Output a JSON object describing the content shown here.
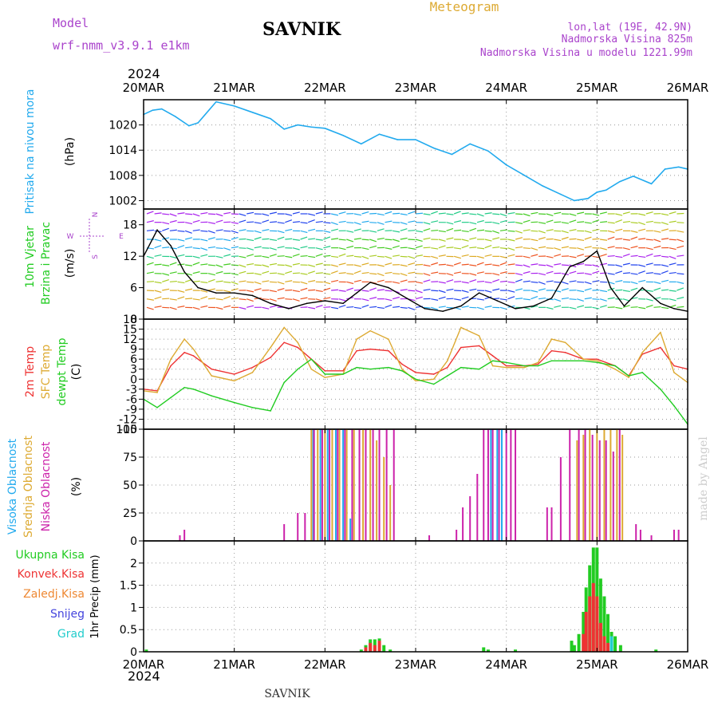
{
  "header": {
    "model_label": "Model",
    "model_name": "wrf-nmm_v3.9.1  e1km",
    "title": "SAVNIK",
    "subtitle": "Meteogram",
    "coords": "lon,lat (19E, 42.9N)",
    "elevation": "Nadmorska Visina 825m",
    "model_elevation": "Nadmorska Visina u modelu 1221.99m",
    "year_top": "2024",
    "year_bottom": "2024",
    "footer": "SAVNIK",
    "watermark": "made by Angel"
  },
  "colors": {
    "pressure": "#22aaee",
    "temp2m": "#ee3333",
    "sfc": "#ddaa33",
    "dew": "#22cc22",
    "high_cloud": "#22aaee",
    "mid_cloud": "#ddaa33",
    "low_cloud": "#cc22aa",
    "total_precip": "#22cc22",
    "conv_precip": "#ee3333",
    "frz_precip": "#ee8833",
    "snow": "#4444dd",
    "hail": "#22cccc",
    "purple_text": "#aa44cc"
  },
  "x_axis": {
    "dates": [
      "20MAR",
      "21MAR",
      "22MAR",
      "23MAR",
      "24MAR",
      "25MAR",
      "26MAR"
    ]
  },
  "panel_labels": {
    "pressure": [
      "Pritisak na nivou mora",
      "(hPa)"
    ],
    "wind": [
      "10m Vjetar",
      "Brzina i Pravac",
      "(m/s)"
    ],
    "wind_rose": {
      "n": "N",
      "e": "E",
      "w": "W",
      "s": "S"
    },
    "temp": [
      "2m Temp",
      "SFC Temp",
      "dewpt Temp",
      "(C)"
    ],
    "cloud": [
      "Visoka Oblacnost",
      "Srednja Oblacnost",
      "Niska Oblacnost",
      "(%)"
    ],
    "precip": [
      "Ukupna Kisa",
      "Konvek.Kisa",
      "Zaledj.Kisa",
      "Snijeg",
      "Grad",
      "1hr Precip (mm)"
    ]
  },
  "chart_data": [
    {
      "type": "line",
      "ylabel": "Pritisak na nivou mora (hPa)",
      "ylim": [
        1000,
        1026
      ],
      "yticks": [
        "1002",
        "1008",
        "1014",
        "1020"
      ],
      "x": [
        0,
        0.1,
        0.2,
        0.35,
        0.5,
        0.6,
        0.8,
        1.0,
        1.2,
        1.4,
        1.55,
        1.7,
        1.85,
        2.0,
        2.2,
        2.4,
        2.6,
        2.8,
        3.0,
        3.2,
        3.4,
        3.6,
        3.8,
        4.0,
        4.2,
        4.4,
        4.6,
        4.75,
        4.9,
        5.0,
        5.1,
        5.25,
        5.4,
        5.6,
        5.75,
        5.9,
        6.0
      ],
      "values": [
        1022.5,
        1023.5,
        1023.8,
        1022.0,
        1019.8,
        1020.5,
        1025.5,
        1024.5,
        1023.0,
        1021.5,
        1019.0,
        1020.0,
        1019.5,
        1019.2,
        1017.5,
        1015.5,
        1017.8,
        1016.5,
        1016.5,
        1014.5,
        1013.0,
        1015.5,
        1013.8,
        1010.5,
        1008.0,
        1005.5,
        1003.5,
        1002.0,
        1002.5,
        1004.0,
        1004.5,
        1006.5,
        1007.8,
        1006.0,
        1009.5,
        1010.0,
        1009.5
      ],
      "series": [
        {
          "name": "Pritisak na nivou mora",
          "color": "#22aaee"
        }
      ]
    },
    {
      "type": "line",
      "ylabel": "10m Vjetar Brzina i Pravac (m/s)",
      "ylim": [
        0,
        21
      ],
      "yticks": [
        "0",
        "6",
        "12",
        "18"
      ],
      "x": [
        0,
        0.15,
        0.3,
        0.45,
        0.6,
        0.8,
        1.0,
        1.2,
        1.4,
        1.6,
        1.8,
        2.0,
        2.2,
        2.35,
        2.5,
        2.7,
        2.9,
        3.1,
        3.3,
        3.5,
        3.7,
        3.9,
        4.1,
        4.3,
        4.5,
        4.7,
        4.85,
        5.0,
        5.15,
        5.3,
        5.5,
        5.7,
        5.85,
        6.0
      ],
      "values": [
        12,
        17,
        14,
        9,
        6,
        5,
        5,
        4.5,
        3,
        2,
        3,
        3.5,
        3,
        5,
        7,
        6,
        4,
        2,
        1.5,
        2.5,
        5,
        3.5,
        2,
        2.5,
        4,
        10,
        11,
        13,
        6,
        2.5,
        6,
        3,
        2,
        1.5
      ],
      "series": [
        {
          "name": "10m Vjetar Brzina",
          "color": "#000000"
        }
      ]
    },
    {
      "type": "line",
      "ylabel": "(C)",
      "ylim": [
        -15,
        18
      ],
      "yticks": [
        "-15",
        "-12",
        "-9",
        "-6",
        "-3",
        "0",
        "3",
        "6",
        "9",
        "12",
        "15",
        "18"
      ],
      "x": [
        0,
        0.15,
        0.3,
        0.45,
        0.55,
        0.75,
        1.0,
        1.2,
        1.4,
        1.55,
        1.7,
        1.85,
        2.0,
        2.2,
        2.35,
        2.5,
        2.7,
        2.85,
        3.0,
        3.2,
        3.35,
        3.5,
        3.7,
        3.85,
        4.0,
        4.2,
        4.35,
        4.5,
        4.65,
        4.85,
        5.0,
        5.2,
        5.35,
        5.5,
        5.7,
        5.85,
        6.0
      ],
      "series": [
        {
          "name": "2m Temp",
          "color": "#ee3333",
          "values": [
            -3,
            -3.5,
            4,
            8,
            7,
            3,
            1.5,
            3.5,
            6.5,
            11,
            9.5,
            6,
            2.5,
            2.5,
            8.5,
            9,
            8.5,
            4.5,
            2,
            1.5,
            3.5,
            9.5,
            10,
            7,
            4,
            4,
            4.5,
            8.5,
            8,
            6,
            6,
            4,
            1,
            7.5,
            9.5,
            4,
            3
          ]
        },
        {
          "name": "SFC Temp",
          "color": "#ddaa33",
          "values": [
            -3.5,
            -4,
            6,
            12,
            9,
            1,
            -0.5,
            2,
            9.5,
            15.5,
            11,
            3,
            0.5,
            1.5,
            12,
            14.5,
            12,
            3,
            -0.5,
            0,
            5.5,
            15.5,
            13,
            4,
            3.5,
            3.5,
            5,
            12,
            11,
            6,
            5.5,
            3,
            0.5,
            8,
            14,
            2,
            -1
          ]
        },
        {
          "name": "dewpt Temp",
          "color": "#22cc22",
          "values": [
            -6,
            -8.5,
            -5.5,
            -2.5,
            -3,
            -5,
            -7,
            -8.5,
            -9.5,
            -1,
            3,
            6,
            1.5,
            1.5,
            3.5,
            3,
            3.5,
            2.5,
            0,
            -1.5,
            1,
            3.5,
            3,
            5.5,
            5,
            4,
            4,
            5.5,
            5.5,
            5.5,
            5,
            4,
            1,
            2,
            -3,
            -8,
            -13.5
          ]
        }
      ]
    },
    {
      "type": "bar",
      "ylabel": "(%)",
      "ylim": [
        0,
        100
      ],
      "yticks": [
        "0",
        "25",
        "50",
        "75",
        "100"
      ],
      "series": [
        {
          "name": "Visoka Oblacnost",
          "color": "#22aaee",
          "x": [
            1.87,
            1.95,
            2.03,
            2.12,
            2.2,
            2.28,
            3.83,
            3.9,
            3.95
          ],
          "values": [
            100,
            100,
            100,
            100,
            100,
            20,
            100,
            100,
            100
          ]
        },
        {
          "name": "Srednja Oblacnost",
          "color": "#ddaa33",
          "x": [
            1.85,
            1.92,
            2.0,
            2.08,
            2.16,
            2.24,
            2.32,
            2.42,
            2.5,
            2.57,
            2.65,
            2.72,
            4.78,
            4.85,
            4.92,
            5.0,
            5.08,
            5.15,
            5.22,
            5.28
          ],
          "values": [
            100,
            100,
            100,
            100,
            100,
            100,
            100,
            100,
            100,
            90,
            75,
            50,
            90,
            95,
            100,
            100,
            100,
            100,
            100,
            95
          ]
        },
        {
          "name": "Niska Oblacnost",
          "color": "#cc22aa",
          "x": [
            0.4,
            0.45,
            1.55,
            1.7,
            1.78,
            1.88,
            1.97,
            2.05,
            2.14,
            2.22,
            2.3,
            2.38,
            2.45,
            2.53,
            2.6,
            2.68,
            2.76,
            3.15,
            3.45,
            3.52,
            3.6,
            3.68,
            3.75,
            3.8,
            3.85,
            3.92,
            4.0,
            4.05,
            4.1,
            4.45,
            4.5,
            4.6,
            4.7,
            4.8,
            4.87,
            4.95,
            5.03,
            5.1,
            5.18,
            5.25,
            5.43,
            5.48,
            5.6,
            5.85,
            5.9
          ],
          "values": [
            5,
            10,
            15,
            25,
            25,
            100,
            100,
            100,
            100,
            100,
            100,
            100,
            100,
            100,
            100,
            100,
            100,
            5,
            10,
            30,
            40,
            60,
            100,
            100,
            100,
            100,
            100,
            100,
            100,
            30,
            30,
            75,
            100,
            100,
            100,
            95,
            90,
            90,
            80,
            100,
            15,
            10,
            5,
            10,
            10
          ]
        }
      ]
    },
    {
      "type": "bar",
      "ylabel": "1hr Precip (mm)",
      "ylim": [
        0,
        2.5
      ],
      "yticks": [
        "0",
        "0.5",
        "1",
        "1.5",
        "2"
      ],
      "series": [
        {
          "name": "Ukupna Kisa",
          "color": "#22cc22",
          "x": [
            0.03,
            2.4,
            2.45,
            2.5,
            2.55,
            2.6,
            2.65,
            2.72,
            3.75,
            3.8,
            4.1,
            4.72,
            4.75,
            4.8,
            4.85,
            4.88,
            4.92,
            4.96,
            5.0,
            5.04,
            5.08,
            5.12,
            5.16,
            5.2,
            5.26,
            5.65
          ],
          "values": [
            0.05,
            0.05,
            0.15,
            0.28,
            0.28,
            0.3,
            0.15,
            0.05,
            0.1,
            0.05,
            0.05,
            0.25,
            0.15,
            0.4,
            0.9,
            1.45,
            1.95,
            2.35,
            2.35,
            1.65,
            1.25,
            0.85,
            0.45,
            0.35,
            0.15,
            0.05
          ]
        },
        {
          "name": "Konvek.Kisa",
          "color": "#ee3333",
          "x": [
            2.45,
            2.5,
            2.55,
            2.6,
            4.85,
            4.88,
            4.92,
            4.96,
            5.0,
            5.04,
            5.08,
            5.12
          ],
          "values": [
            0.1,
            0.2,
            0.15,
            0.25,
            0.4,
            0.9,
            1.25,
            1.55,
            1.25,
            0.65,
            0.35,
            0.2
          ]
        },
        {
          "name": "Zaledj.Kisa",
          "color": "#ee8833",
          "x": [],
          "values": []
        },
        {
          "name": "Snijeg",
          "color": "#4444dd",
          "x": [],
          "values": []
        },
        {
          "name": "Grad",
          "color": "#22cccc",
          "x": [
            5.16
          ],
          "values": [
            0.35
          ]
        }
      ]
    }
  ]
}
